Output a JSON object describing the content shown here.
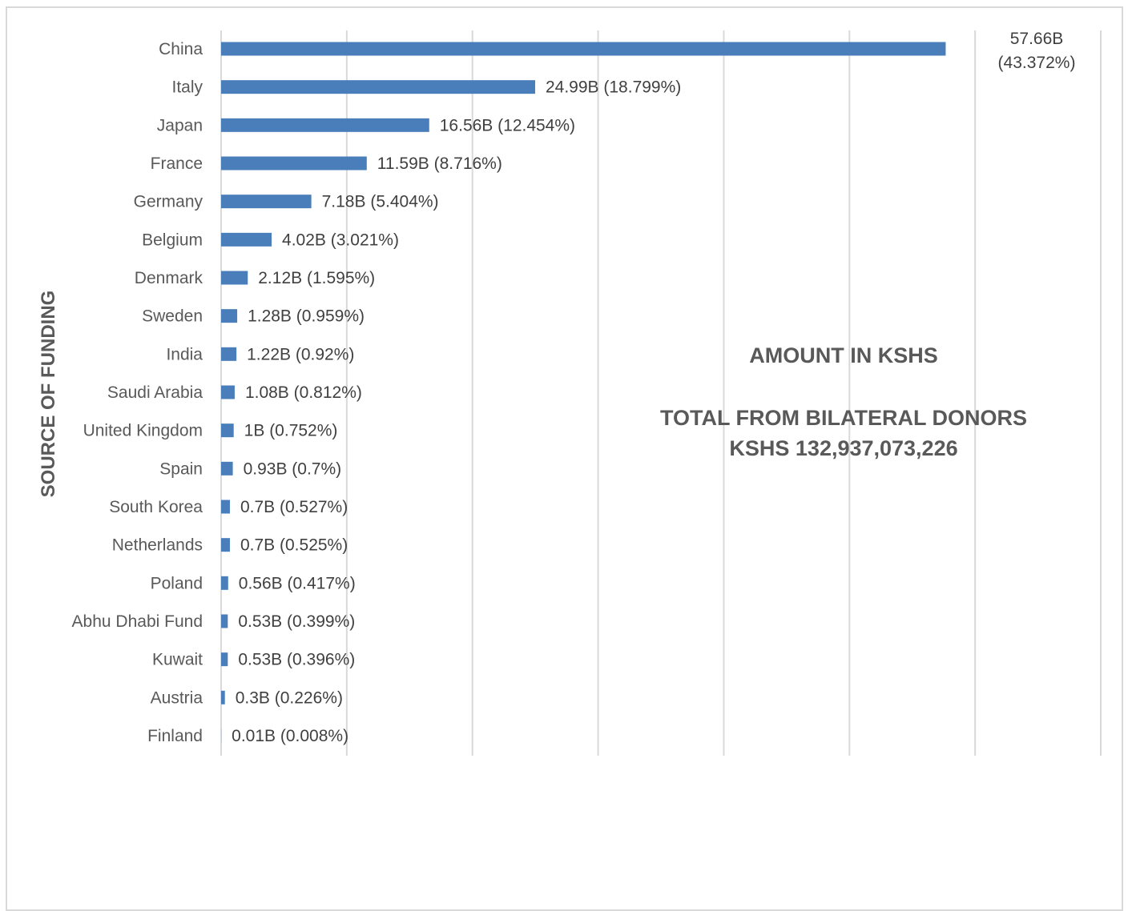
{
  "chart_data": {
    "type": "bar",
    "orientation": "horizontal",
    "ylabel": "SOURCE OF FUNDING",
    "xlabel": "",
    "xlim": [
      0,
      70
    ],
    "grid": true,
    "bar_color": "#4a7ebb",
    "categories": [
      "China",
      "Italy",
      "Japan",
      "France",
      "Germany",
      "Belgium",
      "Denmark",
      "Sweden",
      "India",
      "Saudi Arabia",
      "United Kingdom",
      "Spain",
      "South Korea",
      "Netherlands",
      "Poland",
      "Abhu Dhabi Fund",
      "Kuwait",
      "Austria",
      "Finland"
    ],
    "values": [
      57.66,
      24.99,
      16.56,
      11.59,
      7.18,
      4.02,
      2.12,
      1.28,
      1.22,
      1.08,
      1.0,
      0.93,
      0.7,
      0.7,
      0.56,
      0.53,
      0.53,
      0.3,
      0.01
    ],
    "data_labels": [
      "57.66B (43.372%)",
      "24.99B (18.799%)",
      "16.56B (12.454%)",
      "11.59B (8.716%)",
      "7.18B (5.404%)",
      "4.02B (3.021%)",
      "2.12B (1.595%)",
      "1.28B (0.959%)",
      "1.22B (0.92%)",
      "1.08B (0.812%)",
      "1B (0.752%)",
      "0.93B (0.7%)",
      "0.7B (0.527%)",
      "0.7B (0.525%)",
      "0.56B (0.417%)",
      "0.53B (0.399%)",
      "0.53B (0.396%)",
      "0.3B (0.226%)",
      "0.01B (0.008%)"
    ],
    "annotation": {
      "line1": "AMOUNT IN KSHS",
      "line2": "TOTAL FROM BILATERAL DONORS",
      "line3": "KSHS 132,937,073,226"
    }
  }
}
